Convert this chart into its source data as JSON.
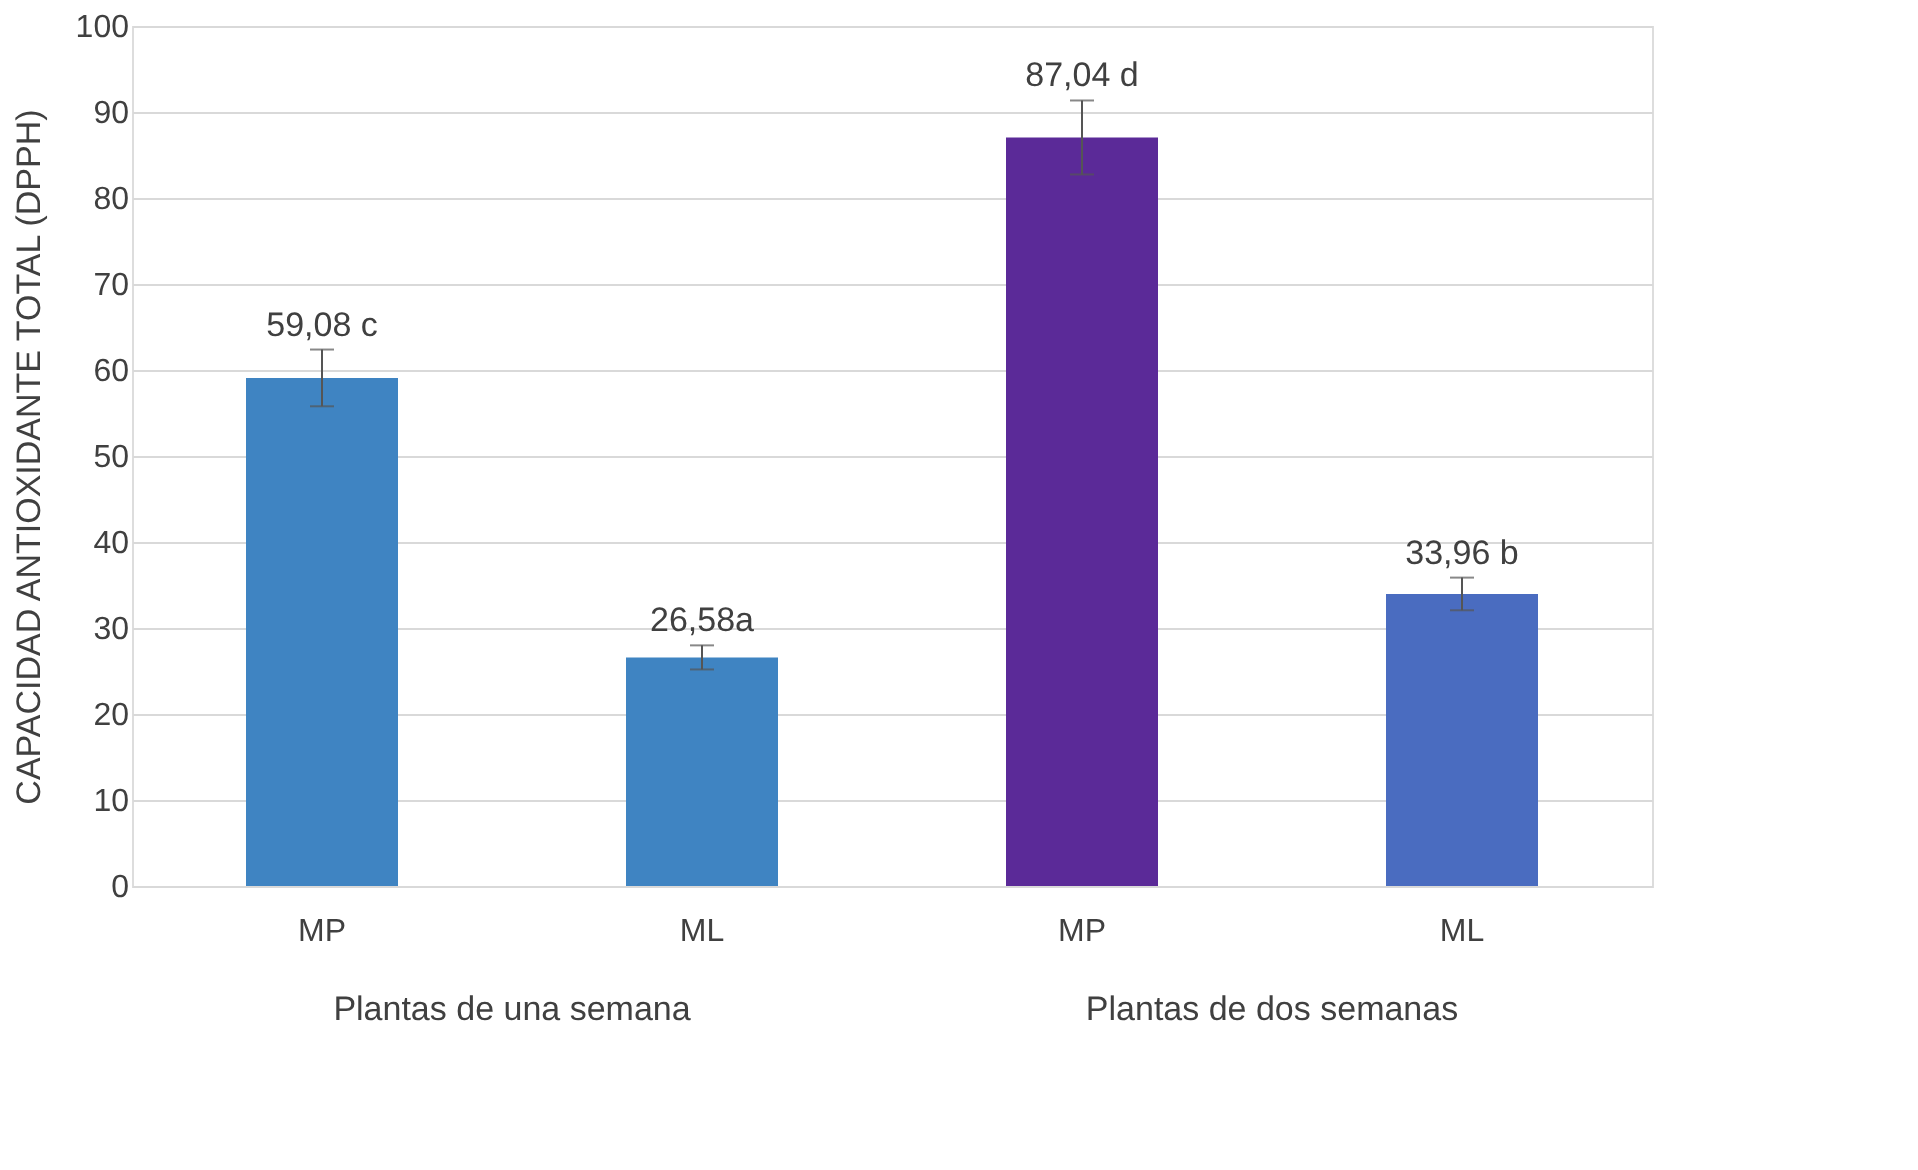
{
  "chart_data": {
    "type": "bar",
    "ylabel": "CAPACIDAD ANTIOXIDANTE TOTAL (DPPH)",
    "categories": [
      "MP",
      "ML",
      "MP",
      "ML"
    ],
    "values": [
      59.08,
      26.58,
      87.04,
      33.96
    ],
    "errors": [
      3.3,
      1.4,
      4.3,
      1.9
    ],
    "colors": [
      "#3f84c2",
      "#3f84c2",
      "#5b2a98",
      "#4a6cc0"
    ],
    "value_labels": [
      "59,08 c",
      "26,58a",
      "87,04 d",
      "33,96 b"
    ],
    "annotations": [
      "Plantas de una semana",
      "Plantas de dos semanas"
    ],
    "ylim": [
      0,
      100
    ],
    "yticks": [
      0,
      10,
      20,
      30,
      40,
      50,
      60,
      70,
      80,
      90,
      100
    ],
    "grid": "y"
  }
}
